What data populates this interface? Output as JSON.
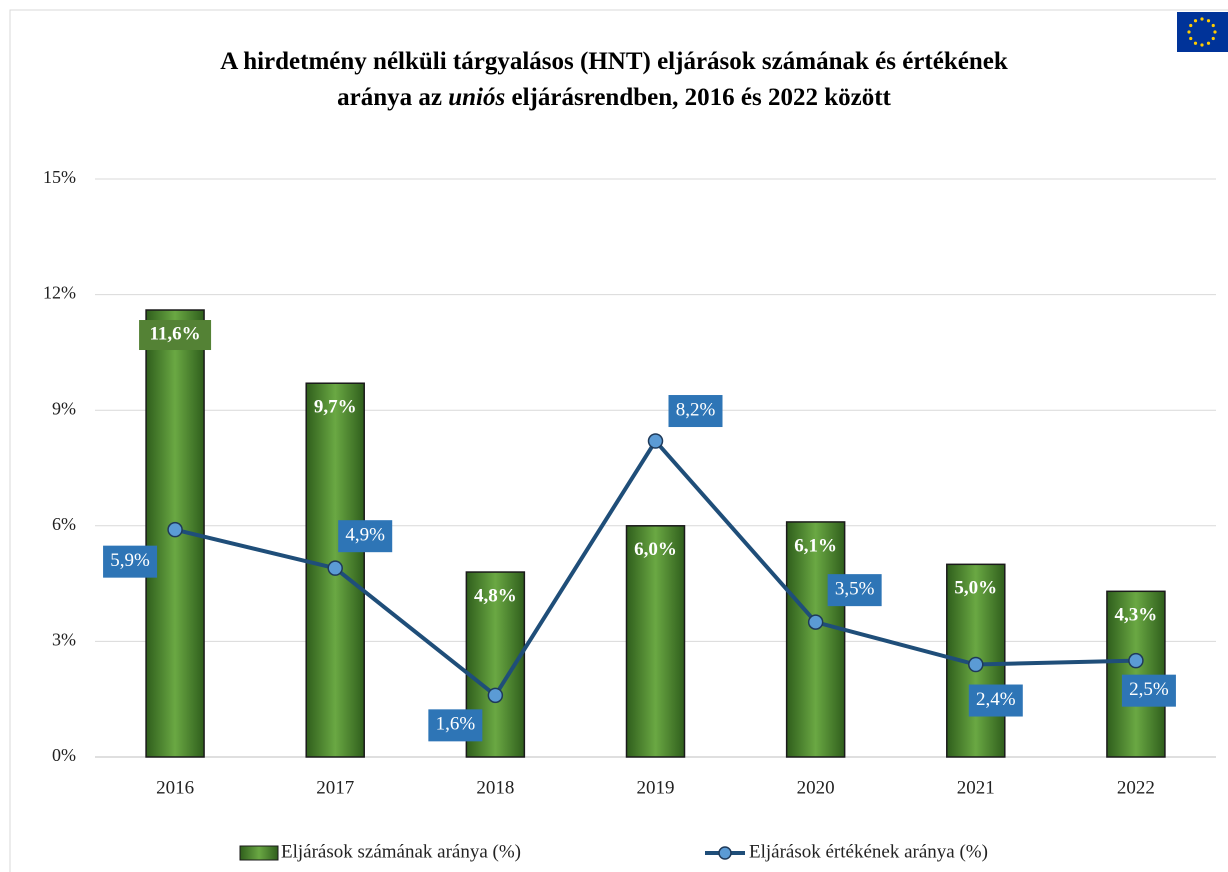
{
  "chart_data": {
    "type": "bar_line",
    "title": [
      "A hirdetmény nélküli tárgyalásos (HNT) eljárások számának és értékének",
      "aránya az",
      "uniós",
      "eljárásrendben, 2016 és 2022 között"
    ],
    "categories": [
      "2016",
      "2017",
      "2018",
      "2019",
      "2020",
      "2021",
      "2022"
    ],
    "series": [
      {
        "name": "Eljárások számának aránya (%)",
        "type": "bar",
        "color": "#5a9a3a",
        "values": [
          11.6,
          9.7,
          4.8,
          6.0,
          6.1,
          5.0,
          4.3
        ],
        "value_labels": [
          "11,6%",
          "9,7%",
          "4,8%",
          "6,0%",
          "6,1%",
          "5,0%",
          "4,3%"
        ]
      },
      {
        "name": "Eljárások értékének aránya (%)",
        "type": "line",
        "color": "#1f4e79",
        "values": [
          5.9,
          4.9,
          1.6,
          8.2,
          3.5,
          2.4,
          2.5
        ],
        "value_labels": [
          "5,9%",
          "4,9%",
          "1,6%",
          "8,2%",
          "3,5%",
          "2,4%",
          "2,5%"
        ]
      }
    ],
    "ylim": [
      0,
      15
    ],
    "yticks": [
      {
        "value": 0,
        "label": "0%"
      },
      {
        "value": 3,
        "label": "3%"
      },
      {
        "value": 6,
        "label": "6%"
      },
      {
        "value": 9,
        "label": "9%"
      },
      {
        "value": 12,
        "label": "12%"
      },
      {
        "value": 15,
        "label": "15%"
      }
    ],
    "grid": true,
    "legend": "bottom"
  }
}
